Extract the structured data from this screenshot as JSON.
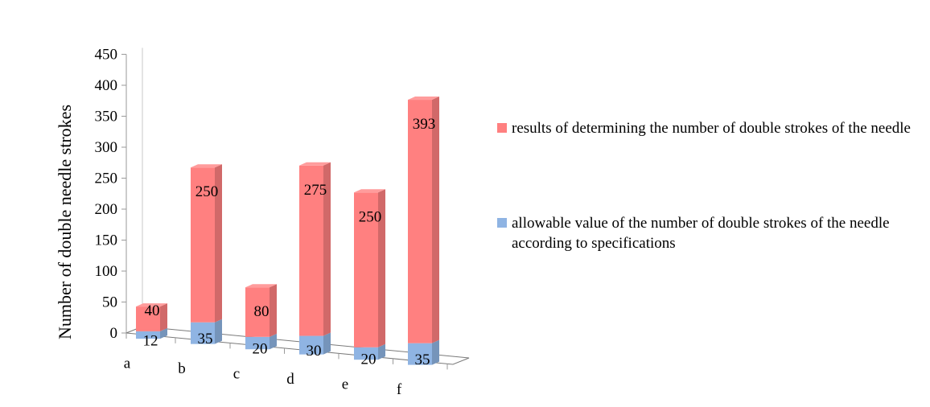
{
  "chart_data": {
    "type": "bar",
    "stacked": true,
    "three_d": true,
    "title": "",
    "xlabel": "",
    "ylabel": "Number of double needle strokes",
    "ylim": [
      0,
      450
    ],
    "yticks": [
      0,
      50,
      100,
      150,
      200,
      250,
      300,
      350,
      400,
      450
    ],
    "categories": [
      "a",
      "b",
      "c",
      "d",
      "e",
      "f"
    ],
    "series": [
      {
        "name": "allowable value of the number of double strokes of the needle according to specifications",
        "values": [
          12,
          35,
          20,
          30,
          20,
          35
        ],
        "color": "#8fb4e3"
      },
      {
        "name": "results of determining the number of double strokes of the needle",
        "values": [
          40,
          250,
          80,
          275,
          250,
          393
        ],
        "color": "#ff8080"
      }
    ],
    "legend_position": "right",
    "grid": false
  }
}
